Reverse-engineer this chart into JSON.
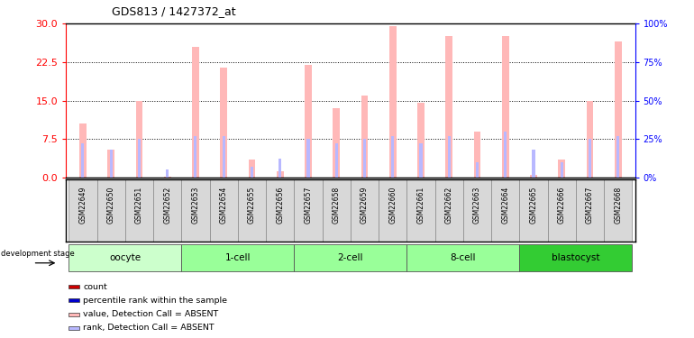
{
  "title": "GDS813 / 1427372_at",
  "samples": [
    "GSM22649",
    "GSM22650",
    "GSM22651",
    "GSM22652",
    "GSM22653",
    "GSM22654",
    "GSM22655",
    "GSM22656",
    "GSM22657",
    "GSM22658",
    "GSM22659",
    "GSM22660",
    "GSM22661",
    "GSM22662",
    "GSM22663",
    "GSM22664",
    "GSM22665",
    "GSM22666",
    "GSM22667",
    "GSM22668"
  ],
  "value_absent": [
    10.5,
    5.5,
    15.0,
    0.2,
    25.5,
    21.5,
    3.5,
    1.2,
    22.0,
    13.5,
    16.0,
    29.5,
    14.5,
    27.5,
    9.0,
    27.5,
    0.5,
    3.5,
    15.0,
    26.5
  ],
  "rank_absent_pct": [
    22,
    18,
    25,
    5,
    27,
    27,
    7,
    12,
    25,
    22,
    25,
    27,
    22,
    27,
    10,
    30,
    18,
    10,
    25,
    27
  ],
  "groups": [
    {
      "label": "oocyte",
      "start": 0,
      "end": 4
    },
    {
      "label": "1-cell",
      "start": 4,
      "end": 8
    },
    {
      "label": "2-cell",
      "start": 8,
      "end": 12
    },
    {
      "label": "8-cell",
      "start": 12,
      "end": 16
    },
    {
      "label": "blastocyst",
      "start": 16,
      "end": 20
    }
  ],
  "group_colors": [
    "#ccffcc",
    "#99ff99",
    "#99ff99",
    "#99ff99",
    "#33cc33"
  ],
  "ylim_left": [
    0,
    30
  ],
  "yticks_left": [
    0,
    7.5,
    15,
    22.5,
    30
  ],
  "ylim_right": [
    0,
    100
  ],
  "yticks_right": [
    0,
    25,
    50,
    75,
    100
  ],
  "color_count": "#cc0000",
  "color_rank_present": "#0000cc",
  "color_value_absent": "#ffb8b8",
  "color_rank_absent": "#b8b8ff",
  "pink_bar_width": 0.25,
  "blue_bar_width": 0.1
}
